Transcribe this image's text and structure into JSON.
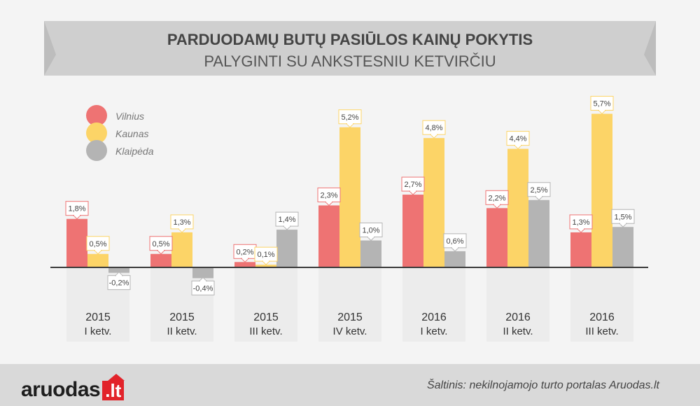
{
  "header": {
    "title": "PARDUODAMŲ BUTŲ PASIŪLOS KAINŲ POKYTIS",
    "subtitle": "PALYGINTI SU ANKSTESNIU KETVIRČIU"
  },
  "colors": {
    "vilnius": "#ee7373",
    "kaunas": "#fcd467",
    "klaipeda": "#b4b4b4",
    "banner": "#cfcfcf",
    "banner_dark": "#bcbcbc",
    "column_bg": "#ececec"
  },
  "chart_data": {
    "type": "bar",
    "title": "PARDUODAMŲ BUTŲ PASIŪLOS KAINŲ POKYTIS",
    "subtitle": "PALYGINTI SU ANKSTESNIU KETVIRČIU",
    "categories": [
      {
        "year": "2015",
        "quarter": "I ketv."
      },
      {
        "year": "2015",
        "quarter": "II ketv."
      },
      {
        "year": "2015",
        "quarter": "III ketv."
      },
      {
        "year": "2015",
        "quarter": "IV ketv."
      },
      {
        "year": "2016",
        "quarter": "I ketv."
      },
      {
        "year": "2016",
        "quarter": "II ketv."
      },
      {
        "year": "2016",
        "quarter": "III ketv."
      }
    ],
    "series": [
      {
        "name": "Vilnius",
        "values": [
          1.8,
          0.5,
          0.2,
          2.3,
          2.7,
          2.2,
          1.3
        ],
        "labels": [
          "1,8%",
          "0,5%",
          "0,2%",
          "2,3%",
          "2,7%",
          "2,2%",
          "1,3%"
        ]
      },
      {
        "name": "Kaunas",
        "values": [
          0.5,
          1.3,
          0.1,
          5.2,
          4.8,
          4.4,
          5.7
        ],
        "labels": [
          "0,5%",
          "1,3%",
          "0,1%",
          "5,2%",
          "4,8%",
          "4,4%",
          "5,7%"
        ]
      },
      {
        "name": "Klaipėda",
        "values": [
          -0.2,
          -0.4,
          1.4,
          1.0,
          0.6,
          2.5,
          1.5
        ],
        "labels": [
          "-0,2%",
          "-0,4%",
          "1,4%",
          "1,0%",
          "0,6%",
          "2,5%",
          "1,5%"
        ]
      }
    ],
    "ylim": [
      -0.5,
      6.0
    ],
    "grid": false,
    "legend_position": "top-left"
  },
  "footer": {
    "logo_text": "aruodas",
    "logo_badge": ".lt",
    "source": "Šaltinis: nekilnojamojo turto portalas Aruodas.lt"
  }
}
